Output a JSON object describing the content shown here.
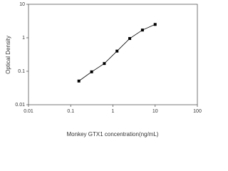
{
  "chart_data": {
    "type": "scatter-line",
    "x_label": "Monkey GTX1 concentration(ng/mL)",
    "y_label": "Optical Density",
    "x": [
      0.156,
      0.313,
      0.625,
      1.25,
      2.5,
      5,
      10
    ],
    "values": [
      0.051,
      0.096,
      0.17,
      0.4,
      0.95,
      1.7,
      2.5
    ],
    "color": "#000000",
    "xscale": "log",
    "yscale": "log",
    "xlim": [
      0.01,
      100
    ],
    "xticks": [
      0.01,
      0.1,
      1,
      10,
      100
    ],
    "ylim": [
      0.01,
      10
    ],
    "yticks": [
      0.01,
      0.1,
      1,
      10
    ]
  }
}
